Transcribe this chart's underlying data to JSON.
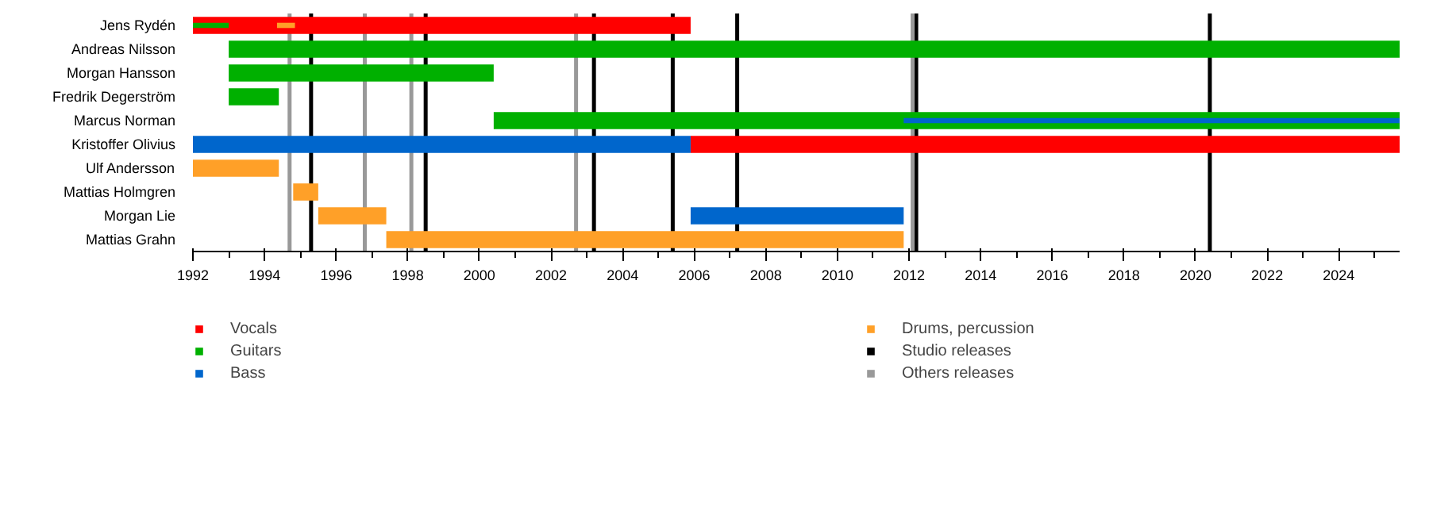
{
  "chart_data": {
    "type": "bar",
    "orientation": "horizontal",
    "categories": [
      "Jens Rydén",
      "Andreas Nilsson",
      "Morgan Hansson",
      "Fredrik Degerström",
      "Marcus Norman",
      "Kristoffer Olivius",
      "Ulf Andersson",
      "Mattias Holmgren",
      "Morgan Lie",
      "Mattias Grahn"
    ],
    "series": [
      {
        "name": "Vocals",
        "color": "#ff0000",
        "base": [
          1992,
          null,
          null,
          null,
          null,
          2005.9,
          null,
          null,
          null,
          null
        ],
        "values": [
          13.9,
          null,
          null,
          null,
          null,
          19.8,
          null,
          null,
          null,
          null
        ]
      },
      {
        "name": "Guitars",
        "color": "#00b000",
        "base": [
          1992,
          1993,
          1993,
          1993,
          2000.4,
          null,
          null,
          null,
          null,
          null
        ],
        "values": [
          1.0,
          32.7,
          7.4,
          1.4,
          25.3,
          null,
          null,
          null,
          null,
          null
        ]
      },
      {
        "name": "Bass",
        "color": "#0066cc",
        "base": [
          null,
          null,
          null,
          null,
          2011.85,
          1992,
          null,
          null,
          2005.9,
          null
        ],
        "values": [
          null,
          null,
          null,
          null,
          13.85,
          13.9,
          null,
          null,
          5.95,
          null
        ]
      },
      {
        "name": "Drums, percussion",
        "color": "#ffa028",
        "base": [
          1994.35,
          null,
          null,
          null,
          null,
          null,
          1992,
          1994.8,
          1995.5,
          1997.4
        ],
        "values": [
          0.5,
          null,
          null,
          null,
          null,
          null,
          2.4,
          0.7,
          1.9,
          14.45
        ]
      }
    ],
    "ref_lines": [
      {
        "axis": "x",
        "value": 1995.3,
        "label": "Studio releases",
        "color": "#000000"
      },
      {
        "axis": "x",
        "value": 1998.5,
        "color": "#000000"
      },
      {
        "axis": "x",
        "value": 2003.2,
        "color": "#000000"
      },
      {
        "axis": "x",
        "value": 2005.4,
        "color": "#000000"
      },
      {
        "axis": "x",
        "value": 2007.2,
        "color": "#000000"
      },
      {
        "axis": "x",
        "value": 2012.2,
        "color": "#000000"
      },
      {
        "axis": "x",
        "value": 2020.4,
        "color": "#000000"
      },
      {
        "axis": "x",
        "value": 1994.7,
        "label": "Others releases",
        "color": "#999999"
      },
      {
        "axis": "x",
        "value": 1996.8,
        "color": "#999999"
      },
      {
        "axis": "x",
        "value": 1998.1,
        "color": "#999999"
      },
      {
        "axis": "x",
        "value": 2002.7,
        "color": "#999999"
      },
      {
        "axis": "x",
        "value": 2012.1,
        "color": "#999999"
      }
    ],
    "xlim": [
      1992,
      2025.7
    ],
    "xticks": [
      1992,
      1994,
      1996,
      1998,
      2000,
      2002,
      2004,
      2006,
      2008,
      2010,
      2012,
      2014,
      2016,
      2018,
      2020,
      2022,
      2024
    ],
    "grid": false,
    "legend": "bottom"
  }
}
